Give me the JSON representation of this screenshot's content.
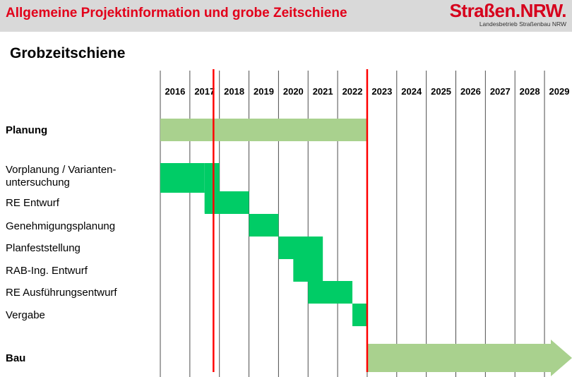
{
  "header": {
    "title": "Allgemeine Projektinformation und grobe Zeitschiene",
    "logo_word": "Straßen.NRW.",
    "logo_sub": "Landesbetrieb Straßenbau NRW"
  },
  "section_title": "Grobzeitschiene",
  "colors": {
    "header_bg": "#d9d9d9",
    "title_red": "#e2001a",
    "summary_bar": "#a9d18e",
    "task_bar": "#00cc66",
    "marker": "#ff0000",
    "gridline": "#4d4d4d"
  },
  "chart_data": {
    "type": "gantt",
    "years": [
      "2016",
      "2017",
      "2018",
      "2019",
      "2020",
      "2021",
      "2022",
      "2023",
      "2024",
      "2025",
      "2026",
      "2027",
      "2028",
      "2029"
    ],
    "markers": [
      2017.8,
      2023.0
    ],
    "rows": [
      {
        "label": "Planung",
        "bold": true,
        "kind": "summary",
        "segments": [
          [
            2016.0,
            2023.0
          ]
        ]
      },
      {
        "label": "Vorplanung / Varianten-\nuntersuchung",
        "bold": false,
        "kind": "task",
        "segments": [
          [
            2016.0,
            2017.5
          ],
          [
            2017.5,
            2018.0
          ]
        ]
      },
      {
        "label": "RE Entwurf",
        "bold": false,
        "kind": "task",
        "segments": [
          [
            2017.5,
            2019.0
          ]
        ]
      },
      {
        "label": "Genehmigungsplanung",
        "bold": false,
        "kind": "task",
        "segments": [
          [
            2019.0,
            2020.0
          ]
        ]
      },
      {
        "label": "Planfeststellung",
        "bold": false,
        "kind": "task",
        "segments": [
          [
            2020.0,
            2021.5
          ]
        ]
      },
      {
        "label": "RAB-Ing. Entwurf",
        "bold": false,
        "kind": "task",
        "segments": [
          [
            2020.5,
            2021.5
          ]
        ]
      },
      {
        "label": "RE Ausführungsentwurf",
        "bold": false,
        "kind": "task",
        "segments": [
          [
            2021.0,
            2022.5
          ]
        ]
      },
      {
        "label": "Vergabe",
        "bold": false,
        "kind": "task",
        "segments": [
          [
            2022.5,
            2023.0
          ]
        ]
      },
      {
        "label": "Bau",
        "bold": true,
        "kind": "arrow",
        "segments": [
          [
            2023.0,
            2030.0
          ]
        ]
      }
    ]
  }
}
